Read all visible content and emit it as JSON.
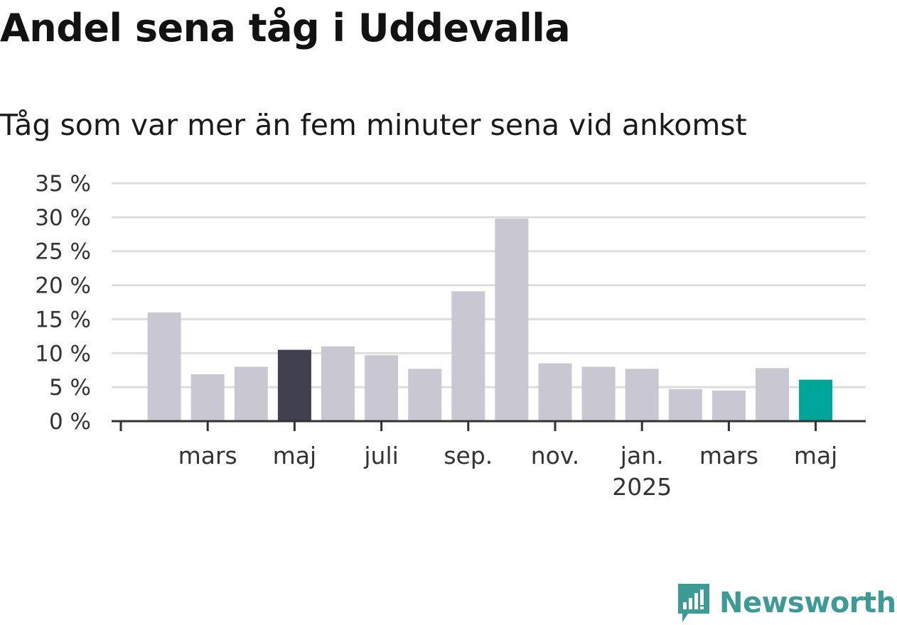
{
  "chart_data": {
    "type": "bar",
    "title": "Andel sena tåg i Uddevalla",
    "subtitle": "Tåg som var mer än fem minuter sena vid ankomst",
    "xlabel": "",
    "ylabel": "",
    "ylim": [
      0,
      35
    ],
    "y_ticks": [
      0,
      5,
      10,
      15,
      20,
      25,
      30,
      35
    ],
    "y_tick_labels": [
      "0 %",
      "5 %",
      "10 %",
      "15 %",
      "20 %",
      "25 %",
      "30 %",
      "35 %"
    ],
    "grid": true,
    "categories": [
      "2024-02",
      "2024-03",
      "2024-04",
      "2024-05",
      "2024-06",
      "2024-07",
      "2024-08",
      "2024-09",
      "2024-10",
      "2024-11",
      "2024-12",
      "2025-01",
      "2025-02",
      "2025-03",
      "2025-04",
      "2025-05"
    ],
    "values": [
      16.0,
      6.9,
      8.0,
      10.5,
      11.0,
      9.7,
      7.7,
      19.1,
      29.8,
      8.5,
      8.0,
      7.7,
      4.7,
      4.5,
      7.8,
      6.1
    ],
    "bar_colors": [
      "#c8c7d2",
      "#c8c7d2",
      "#c8c7d2",
      "#41404e",
      "#c8c7d2",
      "#c8c7d2",
      "#c8c7d2",
      "#c8c7d2",
      "#c8c7d2",
      "#c8c7d2",
      "#c8c7d2",
      "#c8c7d2",
      "#c8c7d2",
      "#c8c7d2",
      "#c8c7d2",
      "#00a59a"
    ],
    "x_tick_labels": [
      {
        "category": "2024-01",
        "label": "",
        "label2": ""
      },
      {
        "category": "2024-03",
        "label": "mars",
        "label2": ""
      },
      {
        "category": "2024-05",
        "label": "maj",
        "label2": ""
      },
      {
        "category": "2024-07",
        "label": "juli",
        "label2": ""
      },
      {
        "category": "2024-09",
        "label": "sep.",
        "label2": ""
      },
      {
        "category": "2024-11",
        "label": "nov.",
        "label2": ""
      },
      {
        "category": "2025-01",
        "label": "jan.",
        "label2": "2025"
      },
      {
        "category": "2025-03",
        "label": "mars",
        "label2": ""
      },
      {
        "category": "2025-05",
        "label": "maj",
        "label2": ""
      }
    ],
    "colors": {
      "default_bar": "#c8c7d2",
      "highlight_bar": "#41404e",
      "latest_bar": "#00a59a",
      "grid": "#dddddd",
      "axis": "#333333"
    }
  },
  "logo": {
    "text": "Newsworthy",
    "icon": "newsworthy-logo-icon",
    "color": "#3d9a94"
  }
}
